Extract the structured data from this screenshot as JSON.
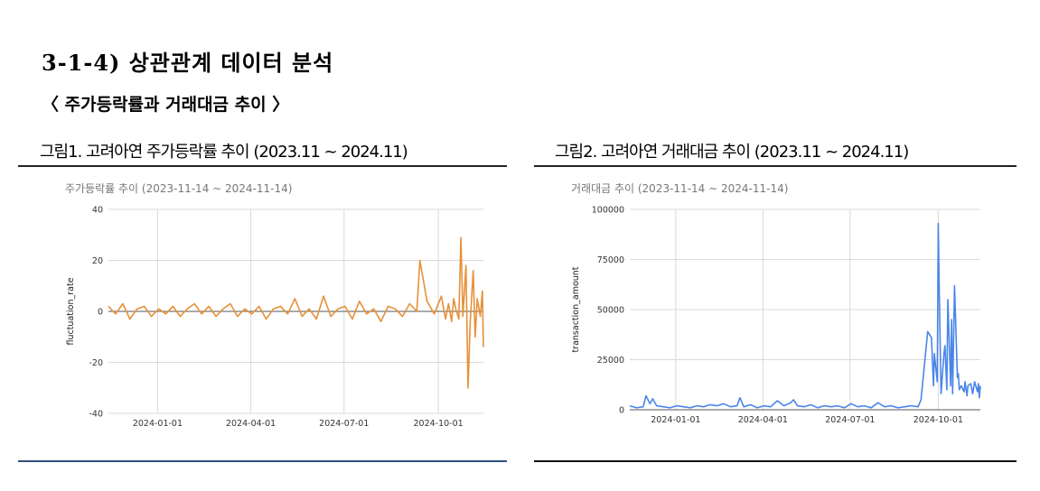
{
  "heading": "3-1-4) 상관관계 데이터 분석",
  "subheading": "〈 주가등락률과 거래대금 추이 〉",
  "figures": [
    {
      "caption": "그림1. 고려아연 주가등락률 추이 (2023.11 ~ 2024.11)",
      "bottom_color": "#2f4f7f"
    },
    {
      "caption": "그림2. 고려아연 거래대금 추이 (2023.11 ~ 2024.11)",
      "bottom_color": "#111111"
    }
  ],
  "chart_data": [
    {
      "type": "line",
      "title": "주가등락률 추이 (2023-11-14 ~ 2024-11-14)",
      "xlabel": "",
      "ylabel": "fluctuation_rate",
      "ylim": [
        -40,
        40
      ],
      "yticks": [
        "40",
        "20",
        "0",
        "-20",
        "-40"
      ],
      "xticks": [
        "2024-01-01",
        "2024-04-01",
        "2024-07-01",
        "2024-10-01"
      ],
      "xrange": [
        "2023-11-14",
        "2024-11-14"
      ],
      "grid": true,
      "color": "#e69138",
      "x": [
        "2023-11-14",
        "2023-11-21",
        "2023-11-28",
        "2023-12-05",
        "2023-12-12",
        "2023-12-19",
        "2023-12-26",
        "2024-01-02",
        "2024-01-09",
        "2024-01-16",
        "2024-01-23",
        "2024-01-30",
        "2024-02-06",
        "2024-02-13",
        "2024-02-20",
        "2024-02-27",
        "2024-03-05",
        "2024-03-12",
        "2024-03-19",
        "2024-03-26",
        "2024-04-02",
        "2024-04-09",
        "2024-04-16",
        "2024-04-23",
        "2024-04-30",
        "2024-05-07",
        "2024-05-14",
        "2024-05-21",
        "2024-05-28",
        "2024-06-04",
        "2024-06-11",
        "2024-06-18",
        "2024-06-25",
        "2024-07-02",
        "2024-07-09",
        "2024-07-16",
        "2024-07-23",
        "2024-07-30",
        "2024-08-06",
        "2024-08-13",
        "2024-08-20",
        "2024-08-27",
        "2024-09-03",
        "2024-09-10",
        "2024-09-13",
        "2024-09-20",
        "2024-09-27",
        "2024-10-04",
        "2024-10-08",
        "2024-10-11",
        "2024-10-14",
        "2024-10-16",
        "2024-10-18",
        "2024-10-21",
        "2024-10-23",
        "2024-10-25",
        "2024-10-28",
        "2024-10-30",
        "2024-11-01",
        "2024-11-04",
        "2024-11-06",
        "2024-11-08",
        "2024-11-11",
        "2024-11-13",
        "2024-11-14"
      ],
      "values": [
        2,
        -1,
        3,
        -3,
        1,
        2,
        -2,
        1,
        -1,
        2,
        -2,
        1,
        3,
        -1,
        2,
        -2,
        1,
        3,
        -2,
        1,
        -1,
        2,
        -3,
        1,
        2,
        -1,
        5,
        -2,
        1,
        -3,
        6,
        -2,
        1,
        2,
        -3,
        4,
        -1,
        1,
        -4,
        2,
        1,
        -2,
        3,
        0,
        20,
        4,
        -1,
        6,
        -3,
        3,
        -4,
        5,
        1,
        -3,
        29,
        -2,
        18,
        -30,
        -5,
        16,
        -10,
        5,
        -2,
        8,
        -14
      ]
    },
    {
      "type": "line",
      "title": "거래대금 추이 (2023-11-14 ~ 2024-11-14)",
      "xlabel": "",
      "ylabel": "transaction_amount",
      "ylim": [
        0,
        100000
      ],
      "yticks": [
        "100000",
        "75000",
        "50000",
        "25000",
        "0"
      ],
      "xticks": [
        "2024-01-01",
        "2024-04-01",
        "2024-07-01",
        "2024-10-01"
      ],
      "xrange": [
        "2023-11-14",
        "2024-11-14"
      ],
      "grid": true,
      "color": "#4a86e8",
      "x": [
        "2023-11-14",
        "2023-11-21",
        "2023-11-28",
        "2023-12-01",
        "2023-12-05",
        "2023-12-08",
        "2023-12-12",
        "2023-12-19",
        "2023-12-26",
        "2024-01-02",
        "2024-01-09",
        "2024-01-16",
        "2024-01-23",
        "2024-01-30",
        "2024-02-06",
        "2024-02-13",
        "2024-02-20",
        "2024-02-27",
        "2024-03-05",
        "2024-03-08",
        "2024-03-12",
        "2024-03-19",
        "2024-03-26",
        "2024-04-02",
        "2024-04-09",
        "2024-04-16",
        "2024-04-23",
        "2024-04-30",
        "2024-05-03",
        "2024-05-07",
        "2024-05-14",
        "2024-05-21",
        "2024-05-28",
        "2024-06-04",
        "2024-06-11",
        "2024-06-18",
        "2024-06-25",
        "2024-07-02",
        "2024-07-09",
        "2024-07-16",
        "2024-07-23",
        "2024-07-30",
        "2024-08-06",
        "2024-08-13",
        "2024-08-20",
        "2024-08-27",
        "2024-09-03",
        "2024-09-10",
        "2024-09-13",
        "2024-09-20",
        "2024-09-24",
        "2024-09-26",
        "2024-09-27",
        "2024-09-30",
        "2024-10-01",
        "2024-10-02",
        "2024-10-04",
        "2024-10-07",
        "2024-10-08",
        "2024-10-10",
        "2024-10-11",
        "2024-10-14",
        "2024-10-15",
        "2024-10-16",
        "2024-10-18",
        "2024-10-21",
        "2024-10-22",
        "2024-10-23",
        "2024-10-25",
        "2024-10-28",
        "2024-10-29",
        "2024-10-31",
        "2024-11-01",
        "2024-11-04",
        "2024-11-06",
        "2024-11-08",
        "2024-11-11",
        "2024-11-12",
        "2024-11-13",
        "2024-11-14"
      ],
      "values": [
        2000,
        1000,
        1500,
        7000,
        3000,
        5500,
        2000,
        1500,
        1000,
        2000,
        1500,
        1000,
        2000,
        1500,
        2500,
        2000,
        3000,
        1500,
        2000,
        6000,
        1500,
        2500,
        1000,
        2000,
        1500,
        4500,
        2000,
        3500,
        5000,
        2000,
        1500,
        2500,
        1000,
        2000,
        1500,
        2000,
        1000,
        3000,
        1500,
        2000,
        1000,
        3500,
        1500,
        2000,
        1000,
        1500,
        2000,
        1500,
        5000,
        39000,
        36000,
        12000,
        28000,
        14000,
        93000,
        62000,
        8000,
        28000,
        32000,
        10000,
        55000,
        12000,
        45000,
        8000,
        62000,
        16000,
        18000,
        10000,
        12000,
        9000,
        14000,
        7000,
        12000,
        13000,
        8000,
        14000,
        9000,
        13000,
        6000,
        12000
      ]
    }
  ]
}
